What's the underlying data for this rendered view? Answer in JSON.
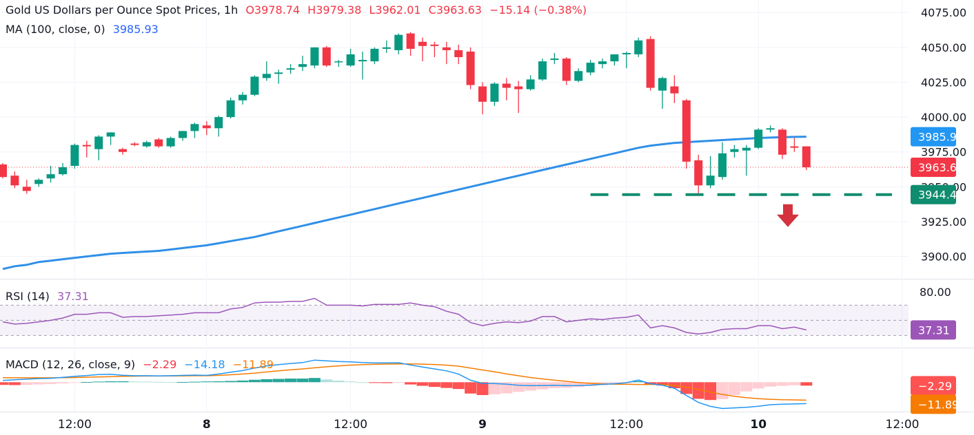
{
  "header": {
    "title": "Gold US Dollars per Ounce Spot Prices, 1h",
    "open": "O3978.74",
    "high": "H3979.38",
    "low": "L3962.01",
    "close": "C3963.63",
    "change": "−15.14 (−0.38%)",
    "ma_label": "MA (100, close, 0)",
    "ma_value": "3985.93"
  },
  "rsi_legend": {
    "label": "RSI (14)",
    "value": "37.31"
  },
  "macd_legend": {
    "label": "MACD (12, 26, close, 9)",
    "hist": "−2.29",
    "macd": "−14.18",
    "signal": "−11.89"
  },
  "colors": {
    "up": "#089981",
    "down": "#f23645",
    "ma": "#2f8fe8",
    "rsi": "#9c56b8",
    "macd": "#2196f3",
    "signal": "#f57c00",
    "support": "#0f8c6e",
    "arrow": "#d4323e"
  },
  "chart_data": {
    "type": "candlestick",
    "title": "Gold US Dollars per Ounce Spot Prices, 1h",
    "y_ticks": [
      "4075.00",
      "4050.00",
      "4025.00",
      "4000.00",
      "3975.00",
      "3950.00",
      "3925.00",
      "3900.00"
    ],
    "y_tick_values": [
      4075,
      4050,
      4025,
      4000,
      3975,
      3950,
      3925,
      3900
    ],
    "price_range": [
      3884,
      4084
    ],
    "x_labels": [
      {
        "label": "12:00",
        "index": 6
      },
      {
        "label": "8",
        "index": 17
      },
      {
        "label": "12:00",
        "index": 29
      },
      {
        "label": "9",
        "index": 40
      },
      {
        "label": "12:00",
        "index": 52
      },
      {
        "label": "10",
        "index": 63
      },
      {
        "label": "12:00",
        "index": 75
      }
    ],
    "candles": [
      [
        3966,
        3967,
        3956,
        3957
      ],
      [
        3958,
        3961,
        3949,
        3951
      ],
      [
        3950,
        3955,
        3945,
        3947
      ],
      [
        3952,
        3956,
        3950,
        3955
      ],
      [
        3956,
        3965,
        3953,
        3959
      ],
      [
        3959,
        3967,
        3958,
        3964
      ],
      [
        3965,
        3981,
        3963,
        3980
      ],
      [
        3980,
        3983,
        3971,
        3979
      ],
      [
        3977,
        3987,
        3969,
        3986
      ],
      [
        3986,
        3989,
        3980,
        3989
      ],
      [
        3977,
        3978,
        3973,
        3975
      ],
      [
        3981,
        3982,
        3979,
        3980
      ],
      [
        3979,
        3983,
        3978,
        3982
      ],
      [
        3984,
        3985,
        3978,
        3979
      ],
      [
        3979,
        3986,
        3978,
        3985
      ],
      [
        3985,
        3990,
        3983,
        3990
      ],
      [
        3990,
        3996,
        3985,
        3995
      ],
      [
        3994,
        3997,
        3987,
        3992
      ],
      [
        3992,
        4001,
        3986,
        4000
      ],
      [
        4000,
        4014,
        3999,
        4012
      ],
      [
        4012,
        4018,
        4009,
        4016
      ],
      [
        4016,
        4030,
        4015,
        4029
      ],
      [
        4028,
        4040,
        4026,
        4031
      ],
      [
        4031,
        4034,
        4024,
        4032
      ],
      [
        4034,
        4038,
        4031,
        4035
      ],
      [
        4036,
        4044,
        4033,
        4038
      ],
      [
        4037,
        4050,
        4035,
        4050
      ],
      [
        4050,
        4051,
        4036,
        4037
      ],
      [
        4040,
        4041,
        4036,
        4040
      ],
      [
        4037,
        4049,
        4036,
        4045
      ],
      [
        4040,
        4047,
        4027,
        4041
      ],
      [
        4040,
        4050,
        4038,
        4049
      ],
      [
        4049,
        4055,
        4046,
        4050
      ],
      [
        4048,
        4060,
        4045,
        4059
      ],
      [
        4060,
        4061,
        4044,
        4049
      ],
      [
        4054,
        4057,
        4040,
        4051
      ],
      [
        4052,
        4054,
        4043,
        4051
      ],
      [
        4050,
        4054,
        4038,
        4048
      ],
      [
        4048,
        4052,
        4038,
        4043
      ],
      [
        4047,
        4050,
        4020,
        4023
      ],
      [
        4022,
        4025,
        4002,
        4011
      ],
      [
        4011,
        4025,
        4008,
        4024
      ],
      [
        4024,
        4028,
        4012,
        4021
      ],
      [
        4022,
        4026,
        4003,
        4020
      ],
      [
        4020,
        4030,
        4019,
        4027
      ],
      [
        4027,
        4042,
        4026,
        4040
      ],
      [
        4041,
        4046,
        4038,
        4042
      ],
      [
        4042,
        4043,
        4023,
        4026
      ],
      [
        4026,
        4035,
        4025,
        4033
      ],
      [
        4032,
        4041,
        4030,
        4039
      ],
      [
        4038,
        4042,
        4035,
        4040
      ],
      [
        4040,
        4045,
        4037,
        4045
      ],
      [
        4045,
        4047,
        4035,
        4046
      ],
      [
        4045,
        4057,
        4043,
        4055
      ],
      [
        4056,
        4058,
        4019,
        4021
      ],
      [
        4019,
        4029,
        4006,
        4028
      ],
      [
        4022,
        4030,
        4010,
        4017
      ],
      [
        4012,
        4013,
        3963,
        3968
      ],
      [
        3969,
        3973,
        3945,
        3951
      ],
      [
        3951,
        3972,
        3949,
        3958
      ],
      [
        3957,
        3982,
        3955,
        3974
      ],
      [
        3975,
        3980,
        3971,
        3977
      ],
      [
        3976,
        3980,
        3958,
        3978
      ],
      [
        3978,
        3992,
        3977,
        3991
      ],
      [
        3991,
        3994,
        3989,
        3992
      ],
      [
        3991,
        3992,
        3970,
        3973
      ],
      [
        3979,
        3985,
        3975,
        3978
      ],
      [
        3979,
        3979,
        3962,
        3964
      ]
    ],
    "ma": [
      3891,
      3893,
      3894,
      3896,
      3897,
      3898,
      3899,
      3900,
      3901,
      3902,
      3902.5,
      3903,
      3903.5,
      3904,
      3905,
      3906,
      3907,
      3908,
      3909.5,
      3911,
      3912.5,
      3914,
      3916,
      3918,
      3920,
      3922,
      3924,
      3926,
      3928,
      3930,
      3932,
      3934,
      3936,
      3938,
      3940,
      3942,
      3944,
      3946,
      3948,
      3950,
      3952,
      3954,
      3956,
      3958,
      3960,
      3962,
      3964,
      3966,
      3968,
      3970,
      3972,
      3974,
      3976,
      3978,
      3979.5,
      3980.5,
      3981.5,
      3982,
      3982.5,
      3983,
      3983.5,
      3984,
      3984.5,
      3985,
      3985.3,
      3985.6,
      3985.8,
      3985.93
    ],
    "current_price": "3963.63",
    "ma_last": "3985.93",
    "support_level": "3944.40",
    "support_value": 3944.4,
    "rsi": {
      "ticks": [
        "80.00"
      ],
      "overbought": 70,
      "oversold": 30,
      "mid": 50,
      "values": [
        48,
        45,
        46,
        48,
        50,
        53,
        58,
        58,
        60,
        60,
        54,
        55,
        55,
        56,
        57,
        58,
        60,
        60,
        60,
        65,
        67,
        73,
        74,
        74,
        75,
        75,
        79,
        70,
        70,
        70,
        69,
        71,
        71,
        71,
        73,
        70,
        68,
        62,
        58,
        47,
        43,
        46,
        48,
        47,
        49,
        55,
        55,
        48,
        50,
        52,
        51,
        53,
        54,
        57,
        40,
        43,
        40,
        34,
        32,
        34,
        38,
        39,
        39,
        43,
        43,
        39,
        41,
        37.31
      ],
      "last": "37.31"
    },
    "macd": {
      "hist": [
        -1.8,
        -1.9,
        -1.8,
        -1.5,
        -1.2,
        -0.8,
        -0.4,
        0.1,
        0.4,
        0.6,
        0.6,
        0.5,
        0.4,
        0.2,
        0.1,
        0.1,
        0.3,
        0.5,
        0.6,
        0.8,
        1.1,
        1.6,
        2.0,
        2.2,
        2.4,
        2.4,
        2.8,
        1.8,
        1.0,
        0.5,
        0.0,
        -0.5,
        -0.6,
        -0.2,
        -1.5,
        -2.4,
        -3.1,
        -3.8,
        -4.5,
        -7.5,
        -8.5,
        -8.0,
        -7.4,
        -6.4,
        -5.5,
        -4.7,
        -3.9,
        -3.7,
        -3.2,
        -2.6,
        -2.0,
        -1.5,
        -0.8,
        0.7,
        -1.6,
        -2.2,
        -4.0,
        -7.8,
        -11.0,
        -11.8,
        -11.2,
        -8.4,
        -6.1,
        -4.2,
        -2.9,
        -2.4,
        -2.0,
        -2.29
      ],
      "macd": [
        1.2,
        1.6,
        2.0,
        2.4,
        2.6,
        3.2,
        3.9,
        4.4,
        5.1,
        5.3,
        4.6,
        4.3,
        4.3,
        4.2,
        4.3,
        4.5,
        4.7,
        4.5,
        5.4,
        6.6,
        7.7,
        9.4,
        10.8,
        11.6,
        12.4,
        13.0,
        14.6,
        14.1,
        13.7,
        13.5,
        13.0,
        12.8,
        12.8,
        12.9,
        11.4,
        10.0,
        8.8,
        7.5,
        5.4,
        1.3,
        -0.8,
        -0.9,
        -1.3,
        -2.0,
        -2.3,
        -2.2,
        -2.0,
        -2.3,
        -2.2,
        -1.9,
        -1.4,
        -1.0,
        -0.3,
        1.4,
        -1.0,
        -2.0,
        -4.0,
        -8.8,
        -13.4,
        -16.0,
        -17.4,
        -17.0,
        -16.6,
        -15.9,
        -14.9,
        -14.6,
        -14.4,
        -14.18
      ],
      "signal": [
        3.0,
        2.9,
        2.9,
        2.9,
        2.9,
        3.0,
        3.1,
        3.3,
        3.5,
        3.7,
        3.9,
        4.0,
        4.1,
        4.1,
        4.2,
        4.2,
        4.3,
        4.3,
        4.5,
        4.9,
        5.4,
        6.0,
        6.8,
        7.5,
        8.2,
        8.8,
        9.5,
        10.2,
        10.8,
        11.3,
        11.6,
        11.8,
        12.0,
        12.1,
        12.1,
        12.0,
        11.7,
        11.3,
        10.6,
        9.4,
        8.1,
        6.9,
        5.5,
        4.3,
        3.1,
        2.2,
        1.3,
        0.6,
        -0.2,
        -0.8,
        -1.1,
        -1.3,
        -1.4,
        -1.5,
        -1.5,
        -1.6,
        -2.0,
        -3.3,
        -4.8,
        -6.5,
        -8.1,
        -9.3,
        -10.2,
        -10.9,
        -11.3,
        -11.6,
        -11.7,
        -11.89
      ],
      "range": [
        -19,
        22
      ],
      "hist_last": "−2.29",
      "signal_last": "−11.89"
    }
  }
}
